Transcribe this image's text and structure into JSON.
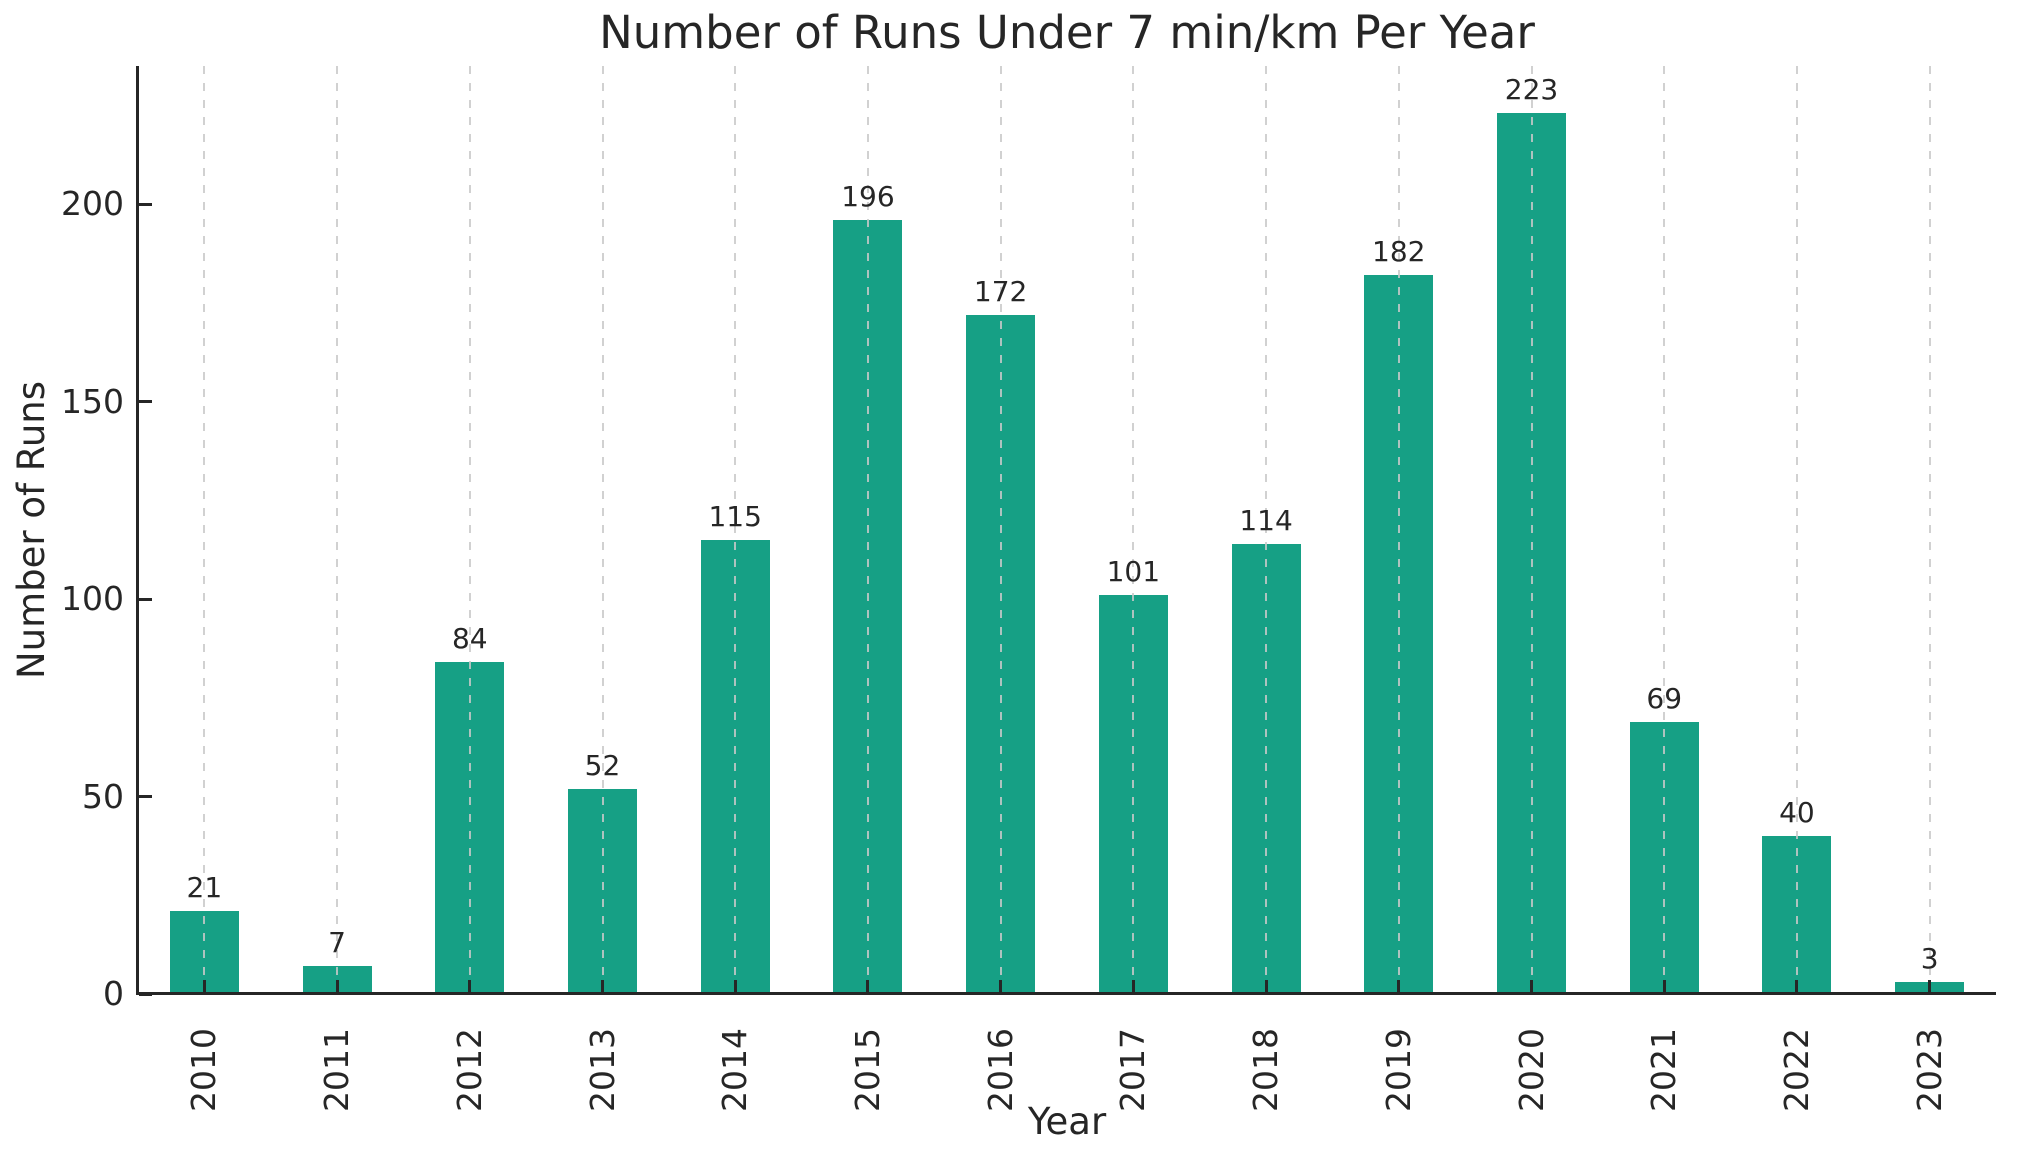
{
  "chart_data": {
    "type": "bar",
    "title": "Number of Runs Under 7 min/km Per Year",
    "xlabel": "Year",
    "ylabel": "Number of Runs",
    "categories": [
      "2010",
      "2011",
      "2012",
      "2013",
      "2014",
      "2015",
      "2016",
      "2017",
      "2018",
      "2019",
      "2020",
      "2021",
      "2022",
      "2023"
    ],
    "values": [
      21,
      7,
      84,
      52,
      115,
      196,
      172,
      101,
      114,
      182,
      223,
      69,
      40,
      3
    ],
    "yticks": [
      0,
      50,
      100,
      150,
      200
    ],
    "ylim": [
      0,
      235
    ],
    "grid": "vertical-dashed-over-bars",
    "legend": "none",
    "bar_color": "#16a085",
    "grid_color": "#c9c9c9",
    "text_color": "#262626"
  }
}
